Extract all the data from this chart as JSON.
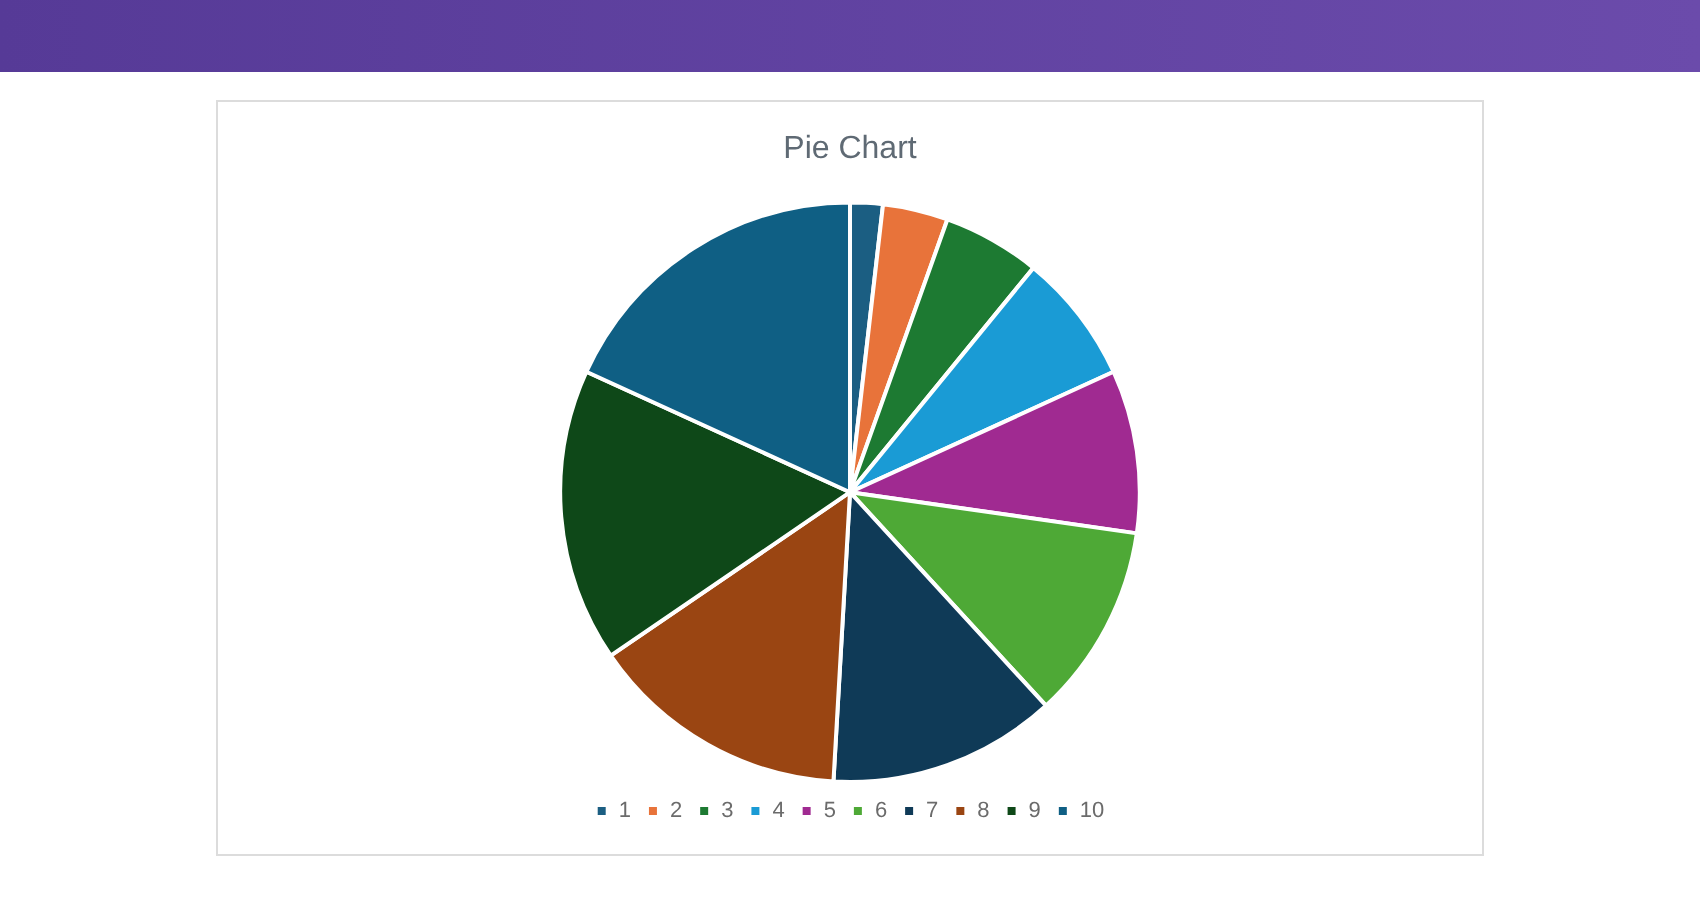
{
  "chart_data": {
    "type": "pie",
    "title": "Pie Chart",
    "categories": [
      "1",
      "2",
      "3",
      "4",
      "5",
      "6",
      "7",
      "8",
      "9",
      "10"
    ],
    "values": [
      1.82,
      3.64,
      5.45,
      7.27,
      9.09,
      10.91,
      12.73,
      14.55,
      16.36,
      18.18
    ],
    "colors": [
      "#1b5e82",
      "#e8733a",
      "#1d7a32",
      "#1a9bd5",
      "#a02a91",
      "#4ea936",
      "#0f3a57",
      "#9a4512",
      "#0e4818",
      "#0f5f84"
    ],
    "legend": "bottom"
  }
}
